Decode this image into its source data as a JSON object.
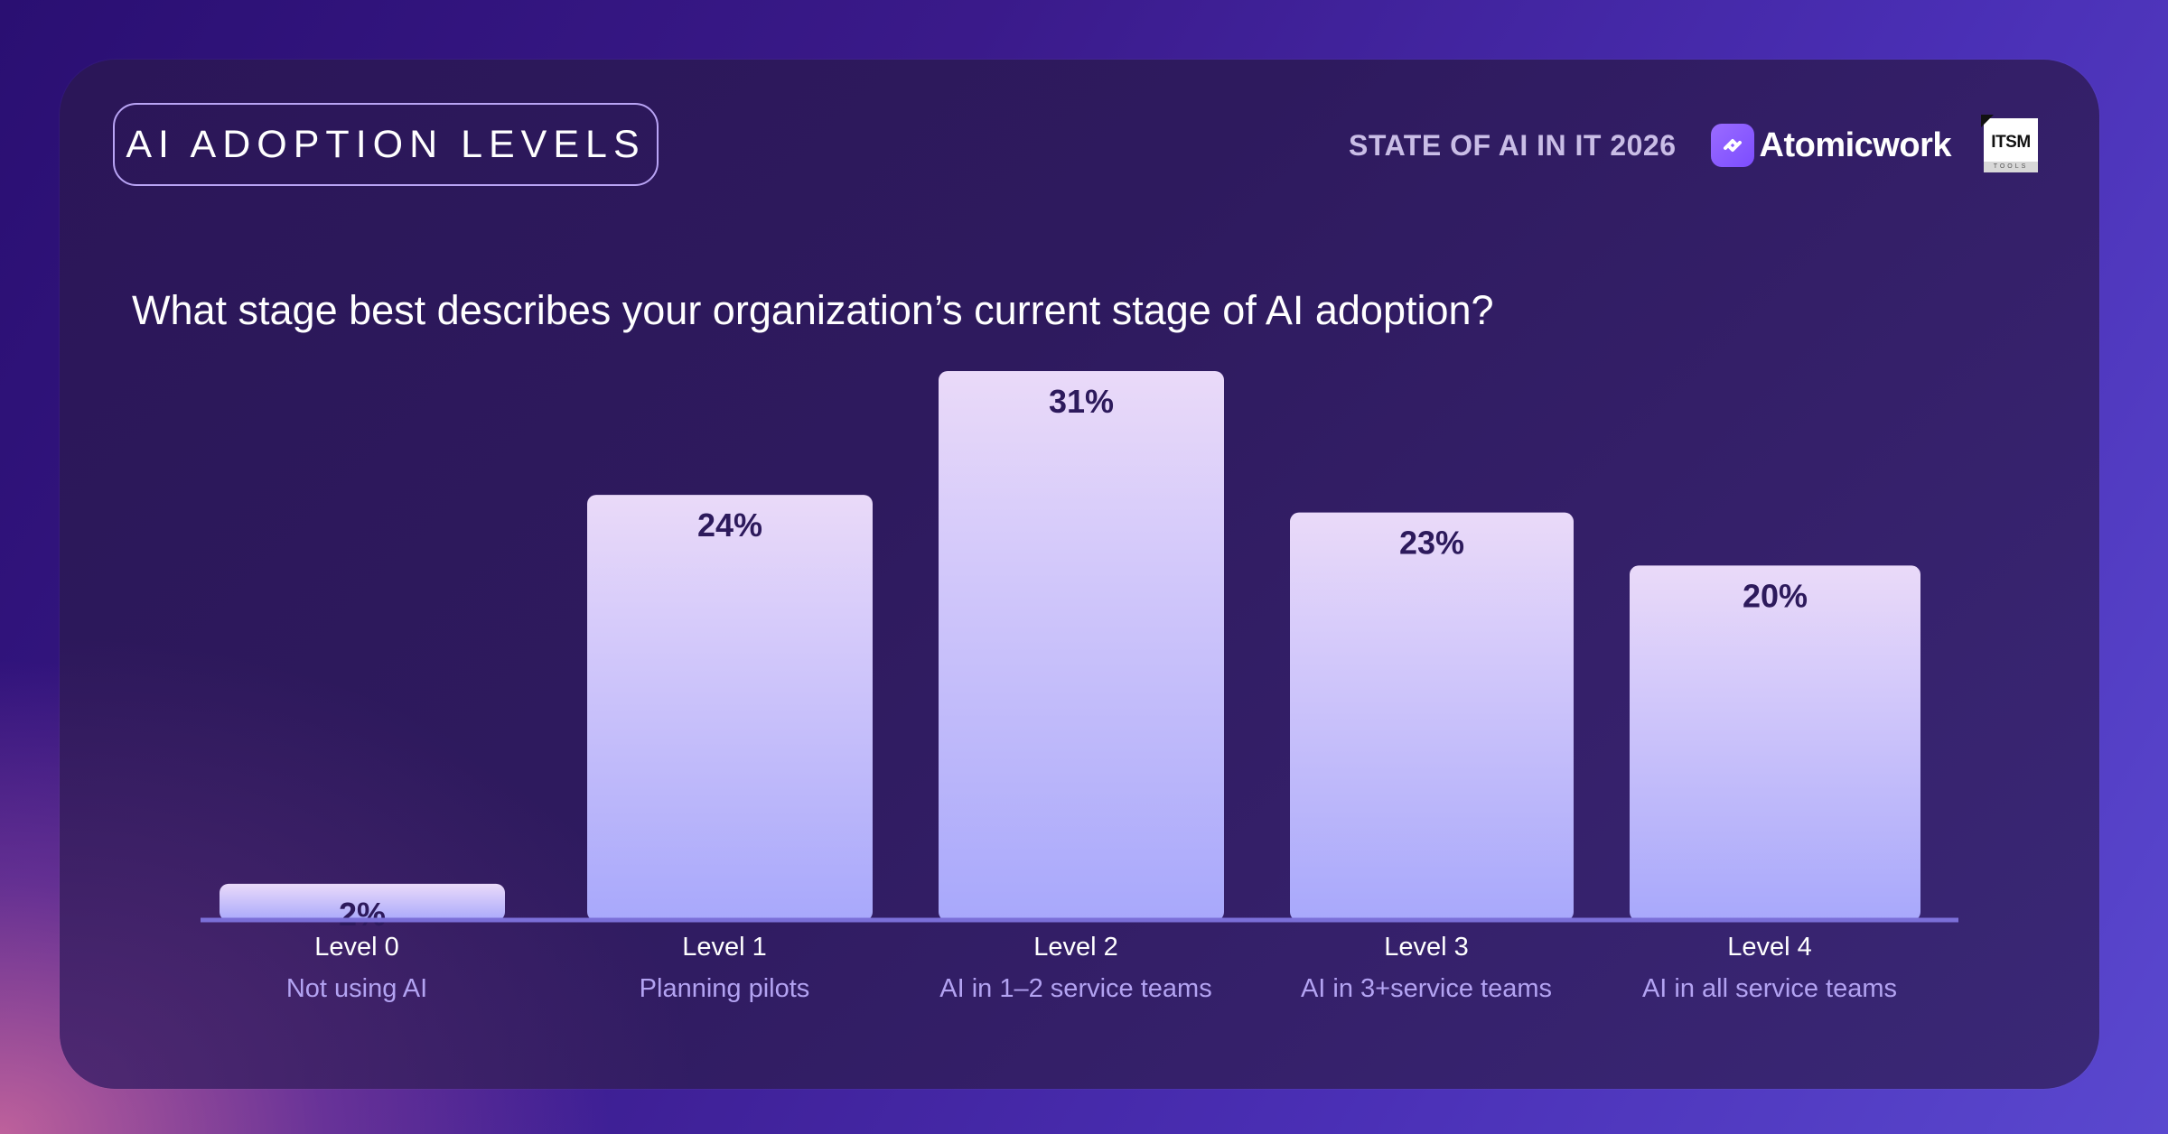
{
  "header": {
    "badge": "AI ADOPTION LEVELS",
    "report": "STATE OF AI IN IT 2026",
    "brand": "Atomicwork",
    "partner_logo": {
      "main": "ITSM",
      "sub": "TOOLS"
    }
  },
  "question": "What stage best describes your organization’s current stage of AI adoption?",
  "colors": {
    "bar_top": "#eadaf9",
    "bar_bottom": "#a8a8fb",
    "baseline": "#7b6fd8",
    "value_text": "#2d1a5c",
    "subtitle_text": "#b3a3f2"
  },
  "chart_data": {
    "type": "bar",
    "categories": [
      "Level 0",
      "Level 1",
      "Level 2",
      "Level 3",
      "Level 4"
    ],
    "subcategories": [
      "Not using AI",
      "Planning pilots",
      "AI in 1–2 service teams",
      "AI in 3+service teams",
      "AI in all service teams"
    ],
    "values": [
      2,
      24,
      31,
      23,
      20
    ],
    "value_labels": [
      "2%",
      "24%",
      "31%",
      "23%",
      "20%"
    ],
    "ylim": [
      0,
      31
    ],
    "grid": false,
    "legend": "none",
    "xlabel": "",
    "ylabel": ""
  }
}
